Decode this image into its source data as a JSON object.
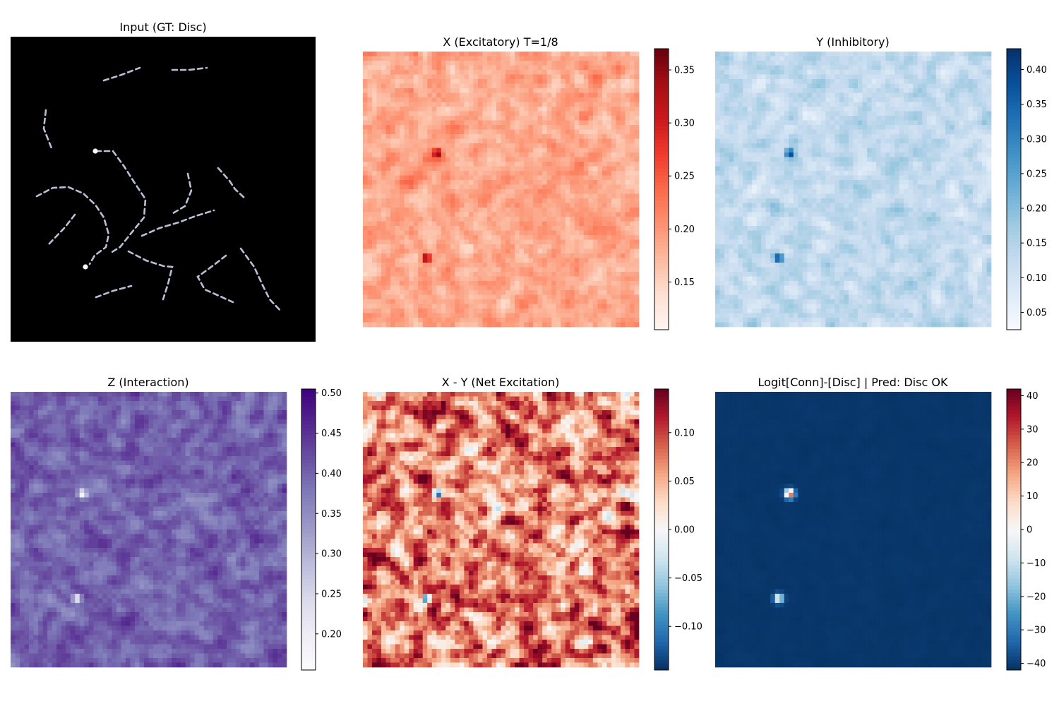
{
  "figure": {
    "panels": [
      {
        "id": "input",
        "title": "Input (GT: Disc)"
      },
      {
        "id": "x",
        "title": "X (Excitatory) T=1/8"
      },
      {
        "id": "y",
        "title": "Y (Inhibitory)"
      },
      {
        "id": "z",
        "title": "Z (Interaction)"
      },
      {
        "id": "xy",
        "title": "X - Y (Net Excitation)"
      },
      {
        "id": "logit",
        "title": "Logit[Conn]-[Disc] | Pred: Disc OK"
      }
    ]
  },
  "chart_data": [
    {
      "type": "image",
      "title": "Input (GT: Disc)",
      "colormap": "gray",
      "background": "#000000",
      "content": "dashed contour paths on black with two bright endpoint dots"
    },
    {
      "type": "heatmap",
      "title": "X (Excitatory) T=1/8",
      "colormap": "Reds",
      "vmin": 0.105,
      "vmax": 0.37,
      "colorbar_ticks": [
        0.15,
        0.2,
        0.25,
        0.3,
        0.35
      ],
      "colorbar_tick_labels": [
        "0.15",
        "0.20",
        "0.25",
        "0.30",
        "0.35"
      ],
      "base_level": 0.185,
      "hotspots": [
        {
          "row": 0.37,
          "col": 0.27,
          "value": 0.37
        },
        {
          "row": 0.75,
          "col": 0.23,
          "value": 0.37
        }
      ]
    },
    {
      "type": "heatmap",
      "title": "Y (Inhibitory)",
      "colormap": "Blues",
      "vmin": 0.025,
      "vmax": 0.43,
      "colorbar_ticks": [
        0.05,
        0.1,
        0.15,
        0.2,
        0.25,
        0.3,
        0.35,
        0.4
      ],
      "colorbar_tick_labels": [
        "0.05",
        "0.10",
        "0.15",
        "0.20",
        "0.25",
        "0.30",
        "0.35",
        "0.40"
      ],
      "base_level": 0.13,
      "hotspots": [
        {
          "row": 0.37,
          "col": 0.27,
          "value": 0.43
        },
        {
          "row": 0.75,
          "col": 0.23,
          "value": 0.43
        }
      ]
    },
    {
      "type": "heatmap",
      "title": "Z (Interaction)",
      "colormap": "Purples",
      "vmin": 0.155,
      "vmax": 0.505,
      "colorbar_ticks": [
        0.2,
        0.25,
        0.3,
        0.35,
        0.4,
        0.45,
        0.5
      ],
      "colorbar_tick_labels": [
        "0.20",
        "0.25",
        "0.30",
        "0.35",
        "0.40",
        "0.45",
        "0.50"
      ],
      "base_level": 0.4,
      "hotspots": [
        {
          "row": 0.37,
          "col": 0.26,
          "value": 0.16
        },
        {
          "row": 0.75,
          "col": 0.24,
          "value": 0.18
        }
      ]
    },
    {
      "type": "heatmap",
      "title": "X - Y (Net Excitation)",
      "colormap": "RdBu_r",
      "vmin": -0.145,
      "vmax": 0.145,
      "colorbar_ticks": [
        -0.1,
        -0.05,
        0.0,
        0.05,
        0.1
      ],
      "colorbar_tick_labels": [
        "−0.10",
        "−0.05",
        "0.00",
        "0.05",
        "0.10"
      ],
      "base_level": 0.075,
      "hotspots": [
        {
          "row": 0.37,
          "col": 0.27,
          "value": -0.145
        },
        {
          "row": 0.75,
          "col": 0.23,
          "value": -0.145
        }
      ]
    },
    {
      "type": "heatmap",
      "title": "Logit[Conn]-[Disc] | Pred: Disc OK",
      "colormap": "RdBu_r",
      "vmin": -42,
      "vmax": 42,
      "colorbar_ticks": [
        -40,
        -30,
        -20,
        -10,
        0,
        10,
        20,
        30,
        40
      ],
      "colorbar_tick_labels": [
        "−40",
        "−30",
        "−20",
        "−10",
        "0",
        "10",
        "20",
        "30",
        "40"
      ],
      "base_level": -41,
      "hotspots": [
        {
          "row": 0.37,
          "col": 0.27,
          "value": 35
        },
        {
          "row": 0.75,
          "col": 0.23,
          "value": 5
        }
      ]
    }
  ]
}
